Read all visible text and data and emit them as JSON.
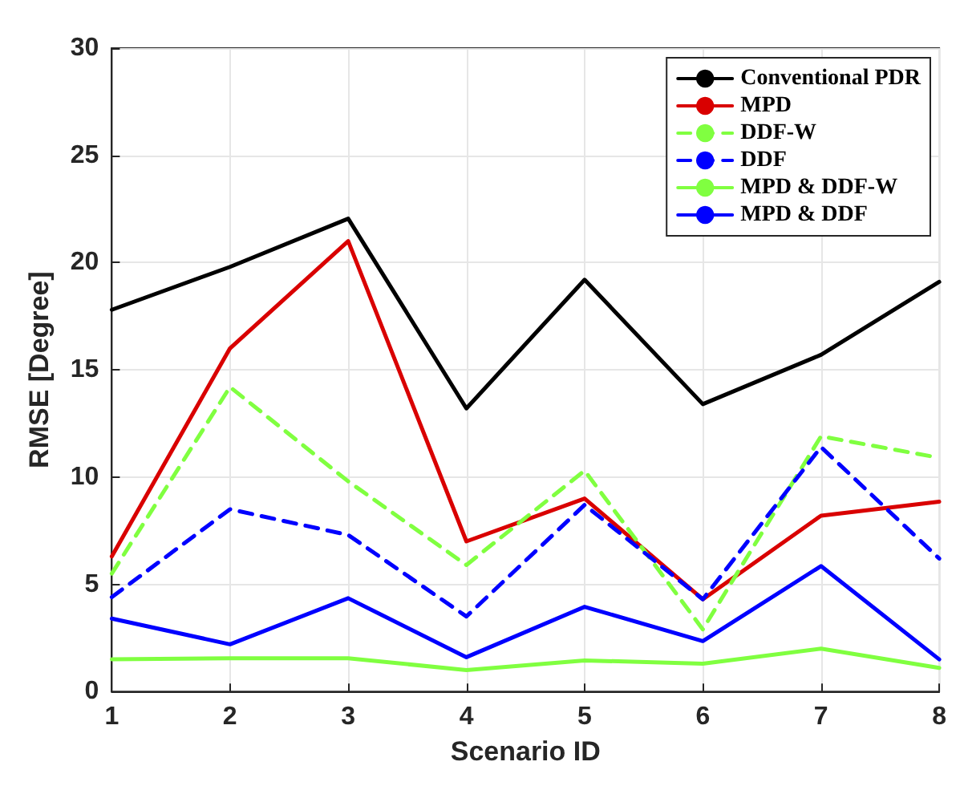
{
  "chart_data": {
    "type": "line",
    "xlabel": "Scenario ID",
    "ylabel": "RMSE [Degree]",
    "x": [
      1,
      2,
      3,
      4,
      5,
      6,
      7,
      8
    ],
    "xlim": [
      1,
      8
    ],
    "xticks": [
      1,
      2,
      3,
      4,
      5,
      6,
      7,
      8
    ],
    "ylim": [
      0,
      30
    ],
    "yticks": [
      0,
      5,
      10,
      15,
      20,
      25,
      30
    ],
    "grid": true,
    "legend": "top right",
    "marker": "none",
    "series": [
      {
        "name": "Conventional PDR",
        "color": "#000000",
        "line_style": "solid",
        "values": [
          17.8,
          19.8,
          22.05,
          13.2,
          19.2,
          13.4,
          15.7,
          19.1
        ]
      },
      {
        "name": "MPD",
        "color": "#d90000",
        "line_style": "solid",
        "values": [
          6.3,
          16.0,
          21.0,
          7.0,
          9.0,
          4.3,
          8.2,
          8.85
        ]
      },
      {
        "name": "DDF-W",
        "color": "#80ff40",
        "line_style": "dashed",
        "values": [
          5.5,
          14.2,
          9.8,
          5.9,
          10.3,
          2.9,
          11.9,
          10.9
        ]
      },
      {
        "name": "DDF",
        "color": "#0000ff",
        "line_style": "dashed",
        "values": [
          4.4,
          8.5,
          7.3,
          3.5,
          8.7,
          4.3,
          11.4,
          6.2
        ]
      },
      {
        "name": "MPD & DDF-W",
        "color": "#80ff40",
        "line_style": "solid",
        "values": [
          1.5,
          1.55,
          1.55,
          1.0,
          1.45,
          1.3,
          2.0,
          1.1
        ]
      },
      {
        "name": "MPD & DDF",
        "color": "#0000ff",
        "line_style": "solid",
        "values": [
          3.4,
          2.2,
          4.35,
          1.6,
          3.95,
          2.35,
          5.85,
          1.5
        ]
      }
    ]
  }
}
